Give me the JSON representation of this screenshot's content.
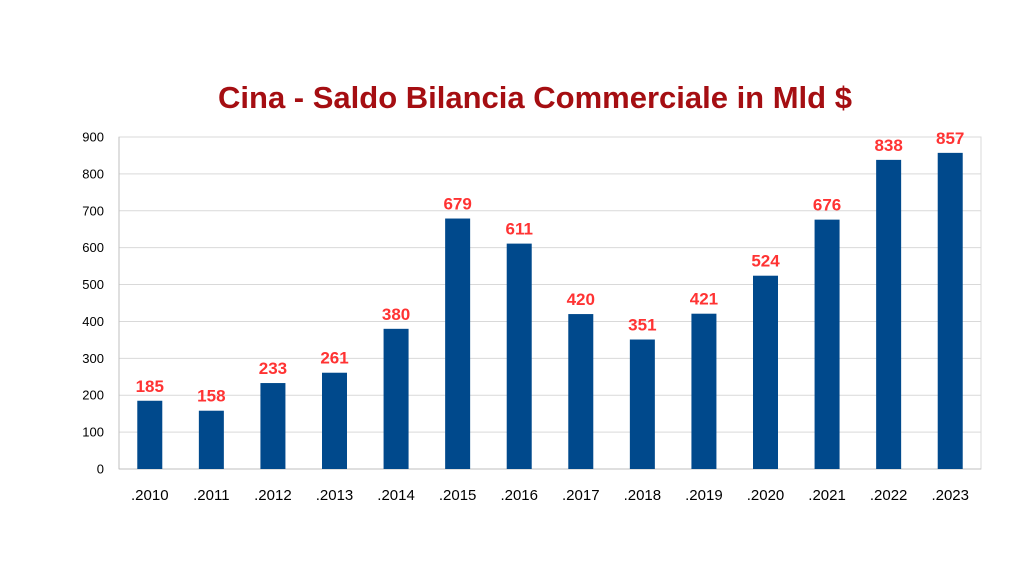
{
  "chart_data": {
    "type": "bar",
    "title": "Cina - Saldo Bilancia Commerciale in Mld $",
    "categories": [
      ".2010",
      ".2011",
      ".2012",
      ".2013",
      ".2014",
      ".2015",
      ".2016",
      ".2017",
      ".2018",
      ".2019",
      ".2020",
      ".2021",
      ".2022",
      ".2023"
    ],
    "values": [
      185,
      158,
      233,
      261,
      380,
      679,
      611,
      420,
      351,
      421,
      524,
      676,
      838,
      857
    ],
    "data_labels": [
      "185",
      "158",
      "233",
      "261",
      "380",
      "679",
      "611",
      "420",
      "351",
      "421",
      "524",
      "676",
      "838",
      "857"
    ],
    "xlabel": "",
    "ylabel": "",
    "ylim": [
      0,
      900
    ],
    "y_ticks": [
      "0",
      "100",
      "200",
      "300",
      "400",
      "500",
      "600",
      "700",
      "800",
      "900"
    ],
    "grid": true,
    "legend": "none",
    "colors": {
      "bar": "#00498c",
      "title": "#a50e12",
      "data_label": "#ff3333",
      "grid": "#d9d9d9",
      "axis": "#bfbfbf"
    }
  }
}
